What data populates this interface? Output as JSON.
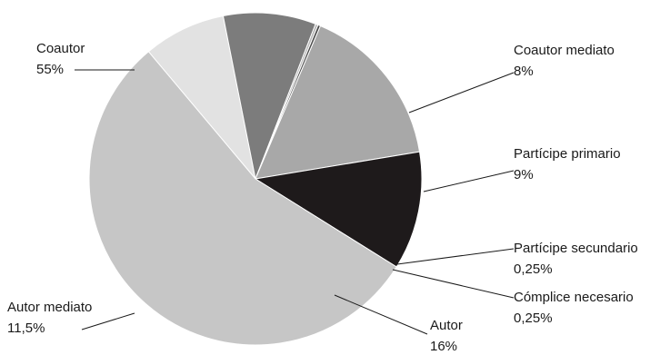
{
  "chart_data": {
    "type": "pie",
    "title": "",
    "start_angle_deg": -40,
    "direction": "clockwise",
    "slices": [
      {
        "label": "Coautor mediato",
        "value_text": "8%",
        "value": 8,
        "color": "#e2e2e2"
      },
      {
        "label": "Partícipe primario",
        "value_text": "9%",
        "value": 9,
        "color": "#7c7c7c"
      },
      {
        "label": "Partícipe secundario",
        "value_text": "0,25%",
        "value": 0.25,
        "color": "#b8b8b8"
      },
      {
        "label": "Cómplice necesario",
        "value_text": "0,25%",
        "value": 0.25,
        "color": "#4a4a4a"
      },
      {
        "label": "Autor",
        "value_text": "16%",
        "value": 16,
        "color": "#a8a8a8"
      },
      {
        "label": "Autor mediato",
        "value_text": "11,5%",
        "value": 11.5,
        "color": "#1e1a1b"
      },
      {
        "label": "Coautor",
        "value_text": "55%",
        "value": 55,
        "color": "#c6c6c6"
      }
    ]
  }
}
